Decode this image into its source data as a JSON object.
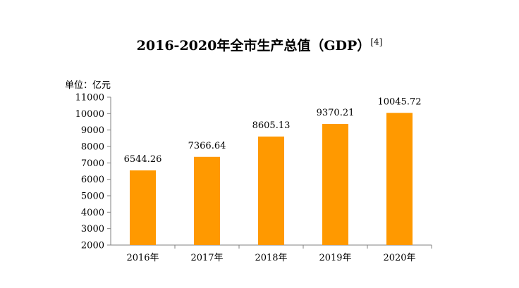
{
  "chart_data": {
    "type": "bar",
    "title": "2016-2020年全市生产总值（GDP）",
    "title_ref": "[4]",
    "ylabel": "单位：亿元",
    "categories": [
      "2016年",
      "2017年",
      "2018年",
      "2019年",
      "2020年"
    ],
    "values": [
      6544.26,
      7366.64,
      8605.13,
      9370.21,
      10045.72
    ],
    "value_labels": [
      "6544.26",
      "7366.64",
      "8605.13",
      "9370.21",
      "10045.72"
    ],
    "ylim": [
      2000,
      11000
    ],
    "yticks": [
      2000,
      3000,
      4000,
      5000,
      6000,
      7000,
      8000,
      9000,
      10000,
      11000
    ],
    "bar_color": "#FF9900",
    "grid": false,
    "legend": "none"
  }
}
